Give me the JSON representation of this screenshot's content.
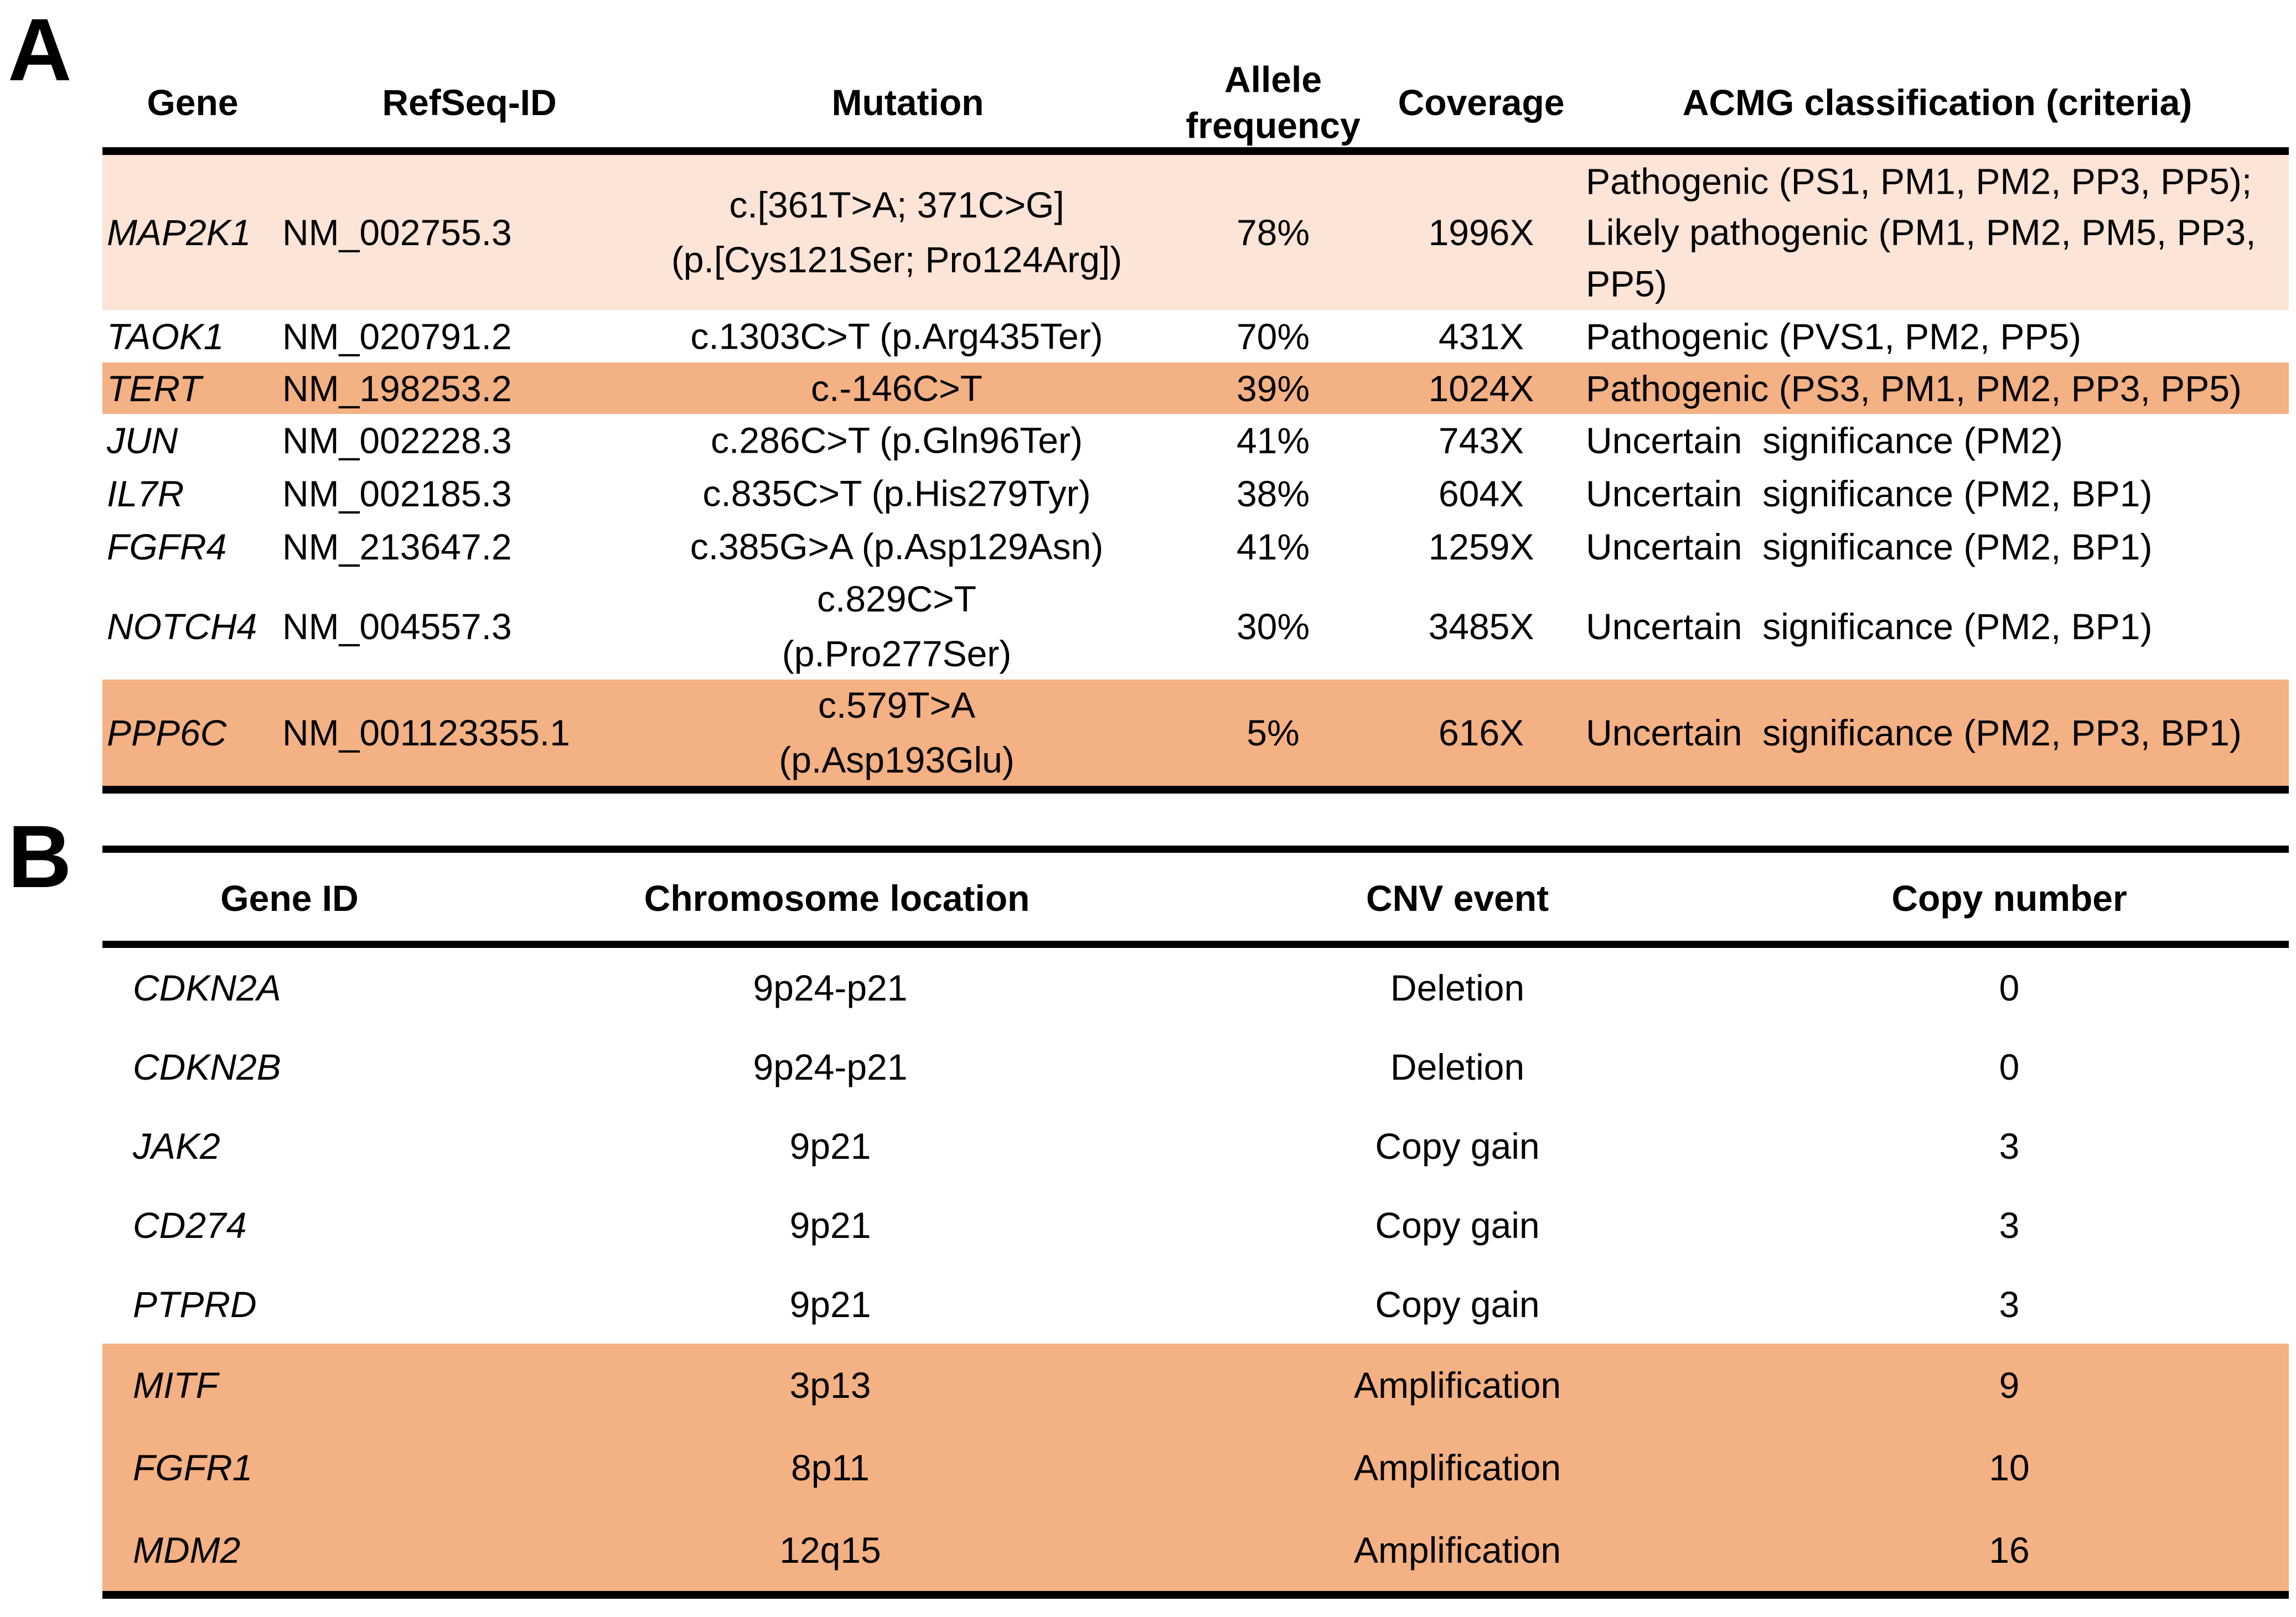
{
  "colors": {
    "highlight_light": "#fce4d6",
    "highlight_strong": "#f4b183",
    "rule": "#000000"
  },
  "panel_a": {
    "label": "A",
    "headers": {
      "gene": "Gene",
      "refseq": "RefSeq-ID",
      "mutation": "Mutation",
      "allele": "Allele frequency",
      "coverage": "Coverage",
      "acmg": "ACMG classification (criteria)"
    },
    "rows": [
      {
        "gene": "MAP2K1",
        "refseq": "NM_002755.3",
        "mutation": "c.[361T>A; 371C>G]\n(p.[Cys121Ser; Pro124Arg])",
        "allele": "78%",
        "coverage": "1996X",
        "acmg": "Pathogenic (PS1, PM1, PM2, PP3, PP5);\nLikely pathogenic (PM1, PM2, PM5, PP3,\nPP5)",
        "highlight": "light"
      },
      {
        "gene": "TAOK1",
        "refseq": "NM_020791.2",
        "mutation": "c.1303C>T (p.Arg435Ter)",
        "allele": "70%",
        "coverage": "431X",
        "acmg": "Pathogenic (PVS1, PM2, PP5)",
        "highlight": "none"
      },
      {
        "gene": "TERT",
        "refseq": "NM_198253.2",
        "mutation": "c.-146C>T",
        "allele": "39%",
        "coverage": "1024X",
        "acmg": "Pathogenic (PS3, PM1, PM2, PP3, PP5)",
        "highlight": "strong"
      },
      {
        "gene": "JUN",
        "refseq": "NM_002228.3",
        "mutation": "c.286C>T (p.Gln96Ter)",
        "allele": "41%",
        "coverage": "743X",
        "acmg": "Uncertain  significance (PM2)",
        "highlight": "none"
      },
      {
        "gene": "IL7R",
        "refseq": "NM_002185.3",
        "mutation": "c.835C>T (p.His279Tyr)",
        "allele": "38%",
        "coverage": "604X",
        "acmg": "Uncertain  significance (PM2, BP1)",
        "highlight": "none"
      },
      {
        "gene": "FGFR4",
        "refseq": "NM_213647.2",
        "mutation": "c.385G>A (p.Asp129Asn)",
        "allele": "41%",
        "coverage": "1259X",
        "acmg": "Uncertain  significance (PM2, BP1)",
        "highlight": "none"
      },
      {
        "gene": "NOTCH4",
        "refseq": "NM_004557.3",
        "mutation": "c.829C>T\n(p.Pro277Ser)",
        "allele": "30%",
        "coverage": "3485X",
        "acmg": "Uncertain  significance (PM2, BP1)",
        "highlight": "none"
      },
      {
        "gene": "PPP6C",
        "refseq": "NM_001123355.1",
        "mutation": "c.579T>A\n(p.Asp193Glu)",
        "allele": "5%",
        "coverage": "616X",
        "acmg": "Uncertain  significance (PM2, PP3, BP1)",
        "highlight": "strong"
      }
    ]
  },
  "panel_b": {
    "label": "B",
    "headers": {
      "gene": "Gene ID",
      "chrom": "Chromosome location",
      "cnv": "CNV event",
      "copy": "Copy number"
    },
    "rows": [
      {
        "gene": "CDKN2A",
        "chrom": "9p24-p21",
        "cnv": "Deletion",
        "copy": "0",
        "highlight": "none"
      },
      {
        "gene": "CDKN2B",
        "chrom": "9p24-p21",
        "cnv": "Deletion",
        "copy": "0",
        "highlight": "none"
      },
      {
        "gene": "JAK2",
        "chrom": "9p21",
        "cnv": "Copy gain",
        "copy": "3",
        "highlight": "none"
      },
      {
        "gene": "CD274",
        "chrom": "9p21",
        "cnv": "Copy gain",
        "copy": "3",
        "highlight": "none"
      },
      {
        "gene": "PTPRD",
        "chrom": "9p21",
        "cnv": "Copy gain",
        "copy": "3",
        "highlight": "none"
      },
      {
        "gene": "MITF",
        "chrom": "3p13",
        "cnv": "Amplification",
        "copy": "9",
        "highlight": "strong"
      },
      {
        "gene": "FGFR1",
        "chrom": "8p11",
        "cnv": "Amplification",
        "copy": "10",
        "highlight": "strong"
      },
      {
        "gene": "MDM2",
        "chrom": "12q15",
        "cnv": "Amplification",
        "copy": "16",
        "highlight": "strong"
      }
    ]
  }
}
